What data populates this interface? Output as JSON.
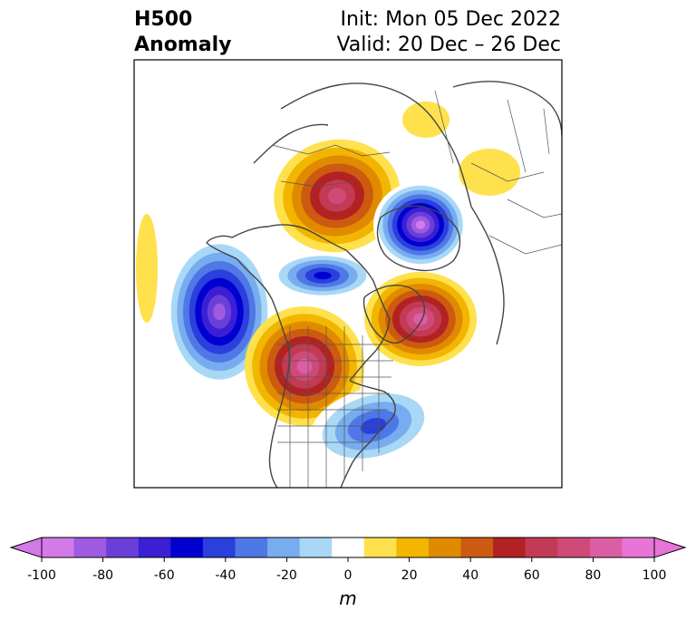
{
  "title": {
    "variable": "H500",
    "field": "Anomaly",
    "init": "Init: Mon 05 Dec 2022",
    "valid": "Valid: 20 Dec – 26 Dec"
  },
  "colorbar": {
    "unit": "m",
    "ticks": [
      "-100",
      "-80",
      "-60",
      "-40",
      "-20",
      "0",
      "20",
      "40",
      "60",
      "80",
      "100"
    ],
    "levels": [
      -100,
      -90,
      -80,
      -70,
      -60,
      -50,
      -40,
      -30,
      -20,
      -10,
      10,
      20,
      30,
      40,
      50,
      60,
      70,
      80,
      90,
      100
    ],
    "colors": [
      "#d37ae8",
      "#9e5ae0",
      "#6a3fd9",
      "#3b1fd4",
      "#0000d0",
      "#2a3fdc",
      "#4f77e6",
      "#77adef",
      "#a9d8f7",
      "#ffffff",
      "#ffe14d",
      "#f2b500",
      "#e08a00",
      "#cc5a10",
      "#b22222",
      "#c23a55",
      "#cf4a78",
      "#db5ea5",
      "#e874d6"
    ],
    "under_color": "#d37ae8",
    "over_color": "#e874d6"
  },
  "anomalies": [
    {
      "name": "ridge-central-canada",
      "sign": "positive",
      "peak": 70
    },
    {
      "name": "trough-arctic-siberia",
      "sign": "negative",
      "peak": -100
    },
    {
      "name": "trough-north-pacific",
      "sign": "negative",
      "peak": -90
    },
    {
      "name": "trough-bering-alaska",
      "sign": "negative",
      "peak": -60
    },
    {
      "name": "ridge-north-atlantic",
      "sign": "positive",
      "peak": 80
    },
    {
      "name": "ridge-western-us",
      "sign": "positive",
      "peak": 80
    },
    {
      "name": "trough-eastern-us",
      "sign": "negative",
      "peak": -50
    }
  ]
}
